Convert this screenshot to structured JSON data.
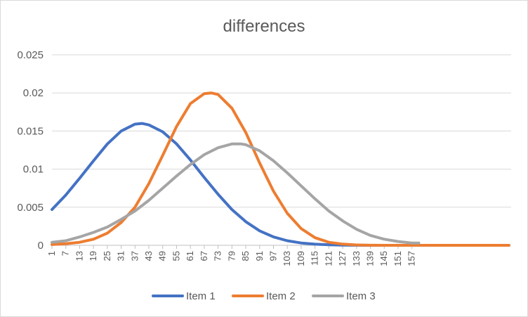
{
  "chart_data": {
    "type": "line",
    "title": "differences",
    "xlabel": "",
    "ylabel": "",
    "ylim": [
      0,
      0.025
    ],
    "y_ticks": [
      "0",
      "0.005",
      "0.01",
      "0.015",
      "0.02",
      "0.025"
    ],
    "x_range": [
      1,
      200
    ],
    "x_tick_labels": [
      "1",
      "7",
      "13",
      "19",
      "25",
      "31",
      "37",
      "43",
      "49",
      "55",
      "61",
      "67",
      "73",
      "79",
      "85",
      "91",
      "97",
      "103",
      "109",
      "115",
      "121",
      "127",
      "133",
      "139",
      "145",
      "151",
      "157"
    ],
    "grid": "horizontal",
    "legend_position": "bottom",
    "series": [
      {
        "name": "Item 1",
        "color": "#4472C4",
        "x": [
          1,
          7,
          13,
          19,
          25,
          31,
          37,
          40,
          43,
          49,
          55,
          61,
          67,
          73,
          79,
          85,
          91,
          97,
          103,
          109,
          115,
          121,
          127,
          133,
          139,
          145,
          151,
          157,
          163,
          169,
          175,
          181,
          187,
          193,
          199
        ],
        "values": [
          0.0047,
          0.0066,
          0.0088,
          0.0111,
          0.0133,
          0.015,
          0.0159,
          0.016,
          0.0158,
          0.0149,
          0.0133,
          0.0112,
          0.0089,
          0.0067,
          0.0047,
          0.0031,
          0.0019,
          0.0011,
          0.0006,
          0.0003,
          0.00015,
          7e-05,
          3e-05,
          1e-05,
          0,
          0,
          0,
          0,
          0,
          0,
          0,
          0,
          0,
          0,
          0
        ]
      },
      {
        "name": "Item 2",
        "color": "#ED7D31",
        "x": [
          1,
          7,
          13,
          19,
          25,
          31,
          37,
          43,
          49,
          55,
          61,
          67,
          70,
          73,
          79,
          85,
          91,
          97,
          103,
          109,
          115,
          121,
          127,
          133,
          139,
          145,
          151,
          157,
          163,
          169,
          175,
          181,
          187,
          193,
          199
        ],
        "values": [
          0.0001,
          0.0002,
          0.0004,
          0.0008,
          0.0016,
          0.003,
          0.005,
          0.0081,
          0.0118,
          0.0156,
          0.0186,
          0.0199,
          0.02,
          0.0198,
          0.018,
          0.0148,
          0.0108,
          0.0071,
          0.0042,
          0.0022,
          0.001,
          0.0004,
          0.00016,
          5e-05,
          1e-05,
          0,
          0,
          0,
          0,
          0,
          0,
          0,
          0,
          0,
          0
        ]
      },
      {
        "name": "Item 3",
        "color": "#A5A5A5",
        "x": [
          1,
          7,
          13,
          19,
          25,
          31,
          37,
          43,
          49,
          55,
          61,
          67,
          73,
          79,
          83,
          85,
          91,
          97,
          103,
          109,
          115,
          121,
          127,
          133,
          139,
          145,
          151,
          157,
          160
        ],
        "values": [
          0.0004,
          0.0006,
          0.0011,
          0.0017,
          0.0024,
          0.0034,
          0.0045,
          0.0059,
          0.0075,
          0.0091,
          0.0106,
          0.0119,
          0.0128,
          0.0133,
          0.0133,
          0.0132,
          0.0124,
          0.0111,
          0.0095,
          0.0078,
          0.0061,
          0.0045,
          0.0032,
          0.0021,
          0.0013,
          0.0008,
          0.0005,
          0.0003,
          0.0003
        ]
      }
    ]
  }
}
